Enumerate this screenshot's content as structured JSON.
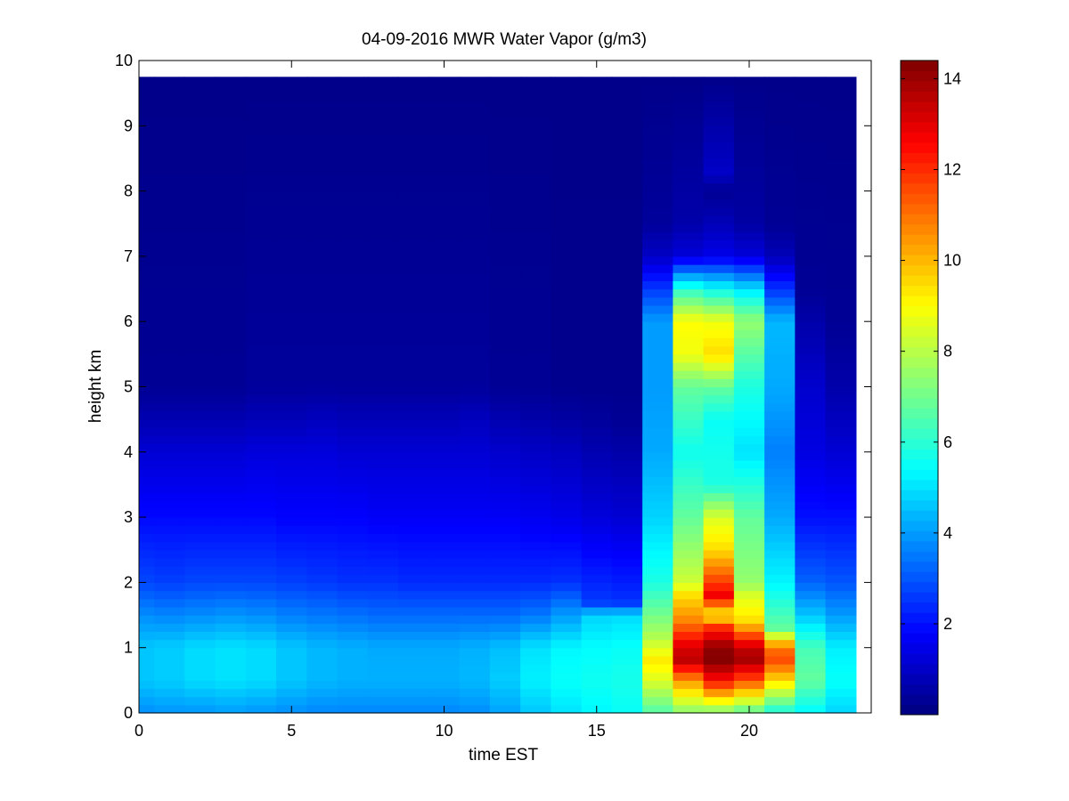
{
  "chart_data": {
    "type": "heatmap",
    "title": "04-09-2016 MWR Water Vapor (g/m3)",
    "xlabel": "time EST",
    "ylabel": "height km",
    "xlim": [
      0,
      24
    ],
    "ylim": [
      0,
      10
    ],
    "x_ticks": [
      0,
      5,
      10,
      15,
      20
    ],
    "y_ticks": [
      0,
      1,
      2,
      3,
      4,
      5,
      6,
      7,
      8,
      9,
      10
    ],
    "colorbar": {
      "colormap": "jet",
      "range": [
        0,
        14.4
      ],
      "ticks": [
        2,
        4,
        6,
        8,
        10,
        12,
        14
      ]
    },
    "data_extent": {
      "time_range": [
        0,
        23.5
      ],
      "height_range": [
        0,
        9.75
      ]
    },
    "columns": [
      {
        "time_start": 0.0,
        "time_end": 0.5,
        "profile": [
          [
            0,
            3.8
          ],
          [
            0.5,
            4.6
          ],
          [
            1.0,
            4.6
          ],
          [
            1.5,
            3.8
          ],
          [
            2.0,
            2.8
          ],
          [
            3.0,
            1.9
          ],
          [
            4.0,
            1.2
          ],
          [
            4.5,
            0.7
          ],
          [
            5.0,
            0.3
          ],
          [
            9.75,
            0.15
          ]
        ]
      },
      {
        "time_start": 0.5,
        "time_end": 1.5,
        "profile": [
          [
            0,
            3.9
          ],
          [
            0.5,
            4.7
          ],
          [
            1.0,
            4.7
          ],
          [
            1.5,
            3.7
          ],
          [
            2.0,
            2.7
          ],
          [
            3.0,
            1.9
          ],
          [
            4.0,
            1.2
          ],
          [
            4.5,
            0.7
          ],
          [
            5.0,
            0.3
          ],
          [
            9.75,
            0.15
          ]
        ]
      },
      {
        "time_start": 1.5,
        "time_end": 2.5,
        "profile": [
          [
            0,
            3.9
          ],
          [
            0.5,
            4.9
          ],
          [
            1.0,
            4.9
          ],
          [
            1.5,
            3.8
          ],
          [
            2.0,
            2.8
          ],
          [
            3.0,
            1.9
          ],
          [
            4.0,
            1.2
          ],
          [
            4.5,
            0.7
          ],
          [
            5.0,
            0.3
          ],
          [
            9.75,
            0.15
          ]
        ]
      },
      {
        "time_start": 2.5,
        "time_end": 3.5,
        "profile": [
          [
            0,
            4.0
          ],
          [
            0.5,
            5.0
          ],
          [
            1.0,
            5.0
          ],
          [
            1.5,
            3.9
          ],
          [
            2.0,
            2.8
          ],
          [
            3.0,
            1.9
          ],
          [
            4.0,
            1.2
          ],
          [
            4.5,
            0.7
          ],
          [
            5.0,
            0.3
          ],
          [
            9.75,
            0.15
          ]
        ]
      },
      {
        "time_start": 3.5,
        "time_end": 4.5,
        "profile": [
          [
            0,
            3.9
          ],
          [
            0.5,
            4.9
          ],
          [
            1.0,
            4.9
          ],
          [
            1.5,
            3.8
          ],
          [
            2.0,
            2.8
          ],
          [
            3.0,
            1.9
          ],
          [
            4.0,
            1.3
          ],
          [
            4.5,
            0.8
          ],
          [
            5.0,
            0.4
          ],
          [
            9.75,
            0.15
          ]
        ]
      },
      {
        "time_start": 4.5,
        "time_end": 5.5,
        "profile": [
          [
            0,
            3.8
          ],
          [
            0.5,
            4.6
          ],
          [
            1.0,
            4.6
          ],
          [
            1.5,
            3.6
          ],
          [
            2.0,
            2.7
          ],
          [
            3.0,
            1.8
          ],
          [
            4.0,
            1.3
          ],
          [
            4.5,
            0.8
          ],
          [
            5.0,
            0.4
          ],
          [
            9.75,
            0.15
          ]
        ]
      },
      {
        "time_start": 5.5,
        "time_end": 6.5,
        "profile": [
          [
            0,
            3.7
          ],
          [
            0.5,
            4.4
          ],
          [
            1.0,
            4.4
          ],
          [
            1.5,
            3.5
          ],
          [
            2.0,
            2.6
          ],
          [
            3.0,
            1.8
          ],
          [
            4.0,
            1.3
          ],
          [
            4.5,
            0.9
          ],
          [
            5.0,
            0.4
          ],
          [
            9.75,
            0.15
          ]
        ]
      },
      {
        "time_start": 6.5,
        "time_end": 7.5,
        "profile": [
          [
            0,
            3.7
          ],
          [
            0.5,
            4.3
          ],
          [
            1.0,
            4.3
          ],
          [
            1.5,
            3.4
          ],
          [
            2.0,
            2.5
          ],
          [
            3.0,
            1.8
          ],
          [
            4.0,
            1.2
          ],
          [
            4.5,
            0.8
          ],
          [
            5.0,
            0.4
          ],
          [
            9.75,
            0.15
          ]
        ]
      },
      {
        "time_start": 7.5,
        "time_end": 8.5,
        "profile": [
          [
            0,
            3.7
          ],
          [
            0.5,
            4.3
          ],
          [
            1.0,
            4.2
          ],
          [
            1.5,
            3.3
          ],
          [
            2.0,
            2.5
          ],
          [
            3.0,
            1.7
          ],
          [
            4.0,
            1.2
          ],
          [
            4.5,
            0.8
          ],
          [
            5.0,
            0.4
          ],
          [
            9.75,
            0.15
          ]
        ]
      },
      {
        "time_start": 8.5,
        "time_end": 9.5,
        "profile": [
          [
            0,
            3.7
          ],
          [
            0.5,
            4.3
          ],
          [
            1.0,
            4.2
          ],
          [
            1.5,
            3.3
          ],
          [
            2.0,
            2.4
          ],
          [
            3.0,
            1.7
          ],
          [
            4.0,
            1.2
          ],
          [
            4.5,
            0.8
          ],
          [
            5.0,
            0.4
          ],
          [
            9.75,
            0.15
          ]
        ]
      },
      {
        "time_start": 9.5,
        "time_end": 10.5,
        "profile": [
          [
            0,
            3.7
          ],
          [
            0.5,
            4.3
          ],
          [
            1.0,
            4.2
          ],
          [
            1.5,
            3.3
          ],
          [
            2.0,
            2.4
          ],
          [
            3.0,
            1.7
          ],
          [
            4.0,
            1.2
          ],
          [
            4.5,
            0.8
          ],
          [
            5.0,
            0.4
          ],
          [
            9.75,
            0.15
          ]
        ]
      },
      {
        "time_start": 10.5,
        "time_end": 11.5,
        "profile": [
          [
            0,
            3.8
          ],
          [
            0.5,
            4.4
          ],
          [
            1.0,
            4.3
          ],
          [
            1.5,
            3.3
          ],
          [
            2.0,
            2.4
          ],
          [
            3.0,
            1.7
          ],
          [
            4.0,
            1.2
          ],
          [
            4.5,
            0.9
          ],
          [
            5.0,
            0.4
          ],
          [
            9.75,
            0.15
          ]
        ]
      },
      {
        "time_start": 11.5,
        "time_end": 12.5,
        "profile": [
          [
            0,
            4.1
          ],
          [
            0.5,
            4.7
          ],
          [
            1.0,
            4.5
          ],
          [
            1.5,
            3.3
          ],
          [
            2.0,
            2.4
          ],
          [
            3.0,
            1.7
          ],
          [
            4.0,
            1.1
          ],
          [
            4.5,
            0.7
          ],
          [
            5.0,
            0.3
          ],
          [
            9.75,
            0.15
          ]
        ]
      },
      {
        "time_start": 12.5,
        "time_end": 13.5,
        "profile": [
          [
            0,
            4.6
          ],
          [
            0.5,
            5.2
          ],
          [
            1.0,
            5.0
          ],
          [
            1.5,
            3.5
          ],
          [
            2.0,
            2.4
          ],
          [
            3.0,
            1.6
          ],
          [
            4.0,
            1.0
          ],
          [
            4.5,
            0.6
          ],
          [
            5.0,
            0.3
          ],
          [
            9.75,
            0.15
          ]
        ]
      },
      {
        "time_start": 13.5,
        "time_end": 14.5,
        "profile": [
          [
            0,
            5.0
          ],
          [
            0.5,
            5.5
          ],
          [
            1.0,
            5.3
          ],
          [
            1.5,
            4.0
          ],
          [
            2.0,
            2.5
          ],
          [
            3.0,
            1.5
          ],
          [
            4.0,
            0.9
          ],
          [
            4.5,
            0.5
          ],
          [
            5.0,
            0.2
          ],
          [
            9.75,
            0.15
          ]
        ]
      },
      {
        "time_start": 14.5,
        "time_end": 15.5,
        "profile": [
          [
            0,
            5.3
          ],
          [
            0.5,
            5.6
          ],
          [
            1.0,
            5.4
          ],
          [
            1.5,
            4.8
          ],
          [
            1.7,
            2.6
          ],
          [
            3.0,
            1.3
          ],
          [
            4.0,
            0.7
          ],
          [
            4.5,
            0.4
          ],
          [
            5.0,
            0.2
          ],
          [
            9.75,
            0.15
          ]
        ]
      },
      {
        "time_start": 15.5,
        "time_end": 16.5,
        "profile": [
          [
            0,
            5.5
          ],
          [
            0.5,
            5.7
          ],
          [
            1.0,
            5.5
          ],
          [
            1.5,
            4.9
          ],
          [
            1.7,
            2.5
          ],
          [
            3.0,
            1.2
          ],
          [
            4.0,
            0.6
          ],
          [
            4.5,
            0.3
          ],
          [
            5.0,
            0.2
          ],
          [
            9.75,
            0.15
          ]
        ]
      },
      {
        "time_start": 16.5,
        "time_end": 17.5,
        "profile": [
          [
            0,
            6.5
          ],
          [
            0.5,
            8.5
          ],
          [
            0.8,
            9.3
          ],
          [
            1.2,
            7.8
          ],
          [
            2.0,
            5.8
          ],
          [
            3.0,
            4.8
          ],
          [
            4.0,
            4.2
          ],
          [
            5.0,
            4.0
          ],
          [
            6.0,
            4.0
          ],
          [
            6.5,
            2.6
          ],
          [
            7.0,
            1.0
          ],
          [
            7.5,
            0.4
          ],
          [
            9.75,
            0.15
          ]
        ]
      },
      {
        "time_start": 17.5,
        "time_end": 18.5,
        "profile": [
          [
            0,
            7.2
          ],
          [
            0.5,
            10.5
          ],
          [
            0.8,
            13.5
          ],
          [
            1.0,
            13.2
          ],
          [
            1.4,
            10.8
          ],
          [
            1.8,
            9.5
          ],
          [
            2.0,
            8.3
          ],
          [
            3.0,
            6.8
          ],
          [
            4.0,
            5.6
          ],
          [
            5.0,
            6.8
          ],
          [
            5.5,
            8.8
          ],
          [
            6.0,
            9.0
          ],
          [
            6.5,
            6.0
          ],
          [
            7.0,
            1.3
          ],
          [
            7.5,
            0.6
          ],
          [
            9.75,
            0.15
          ]
        ]
      },
      {
        "time_start": 18.5,
        "time_end": 19.5,
        "profile": [
          [
            0,
            7.0
          ],
          [
            0.5,
            12.5
          ],
          [
            0.8,
            14.3
          ],
          [
            1.0,
            14.2
          ],
          [
            1.3,
            12.2
          ],
          [
            1.5,
            9.0
          ],
          [
            1.8,
            12.8
          ],
          [
            2.0,
            11.8
          ],
          [
            2.5,
            9.5
          ],
          [
            3.0,
            8.5
          ],
          [
            3.5,
            5.8
          ],
          [
            4.5,
            5.5
          ],
          [
            5.0,
            6.8
          ],
          [
            5.5,
            9.5
          ],
          [
            6.0,
            8.8
          ],
          [
            6.5,
            5.5
          ],
          [
            7.0,
            1.5
          ],
          [
            7.5,
            0.8
          ],
          [
            8.0,
            0.3
          ],
          [
            8.3,
            1.0
          ],
          [
            9.75,
            0.15
          ]
        ]
      },
      {
        "time_start": 19.5,
        "time_end": 20.5,
        "profile": [
          [
            0,
            6.5
          ],
          [
            0.5,
            11.5
          ],
          [
            0.8,
            13.8
          ],
          [
            1.0,
            13.5
          ],
          [
            1.4,
            9.5
          ],
          [
            1.8,
            8.5
          ],
          [
            2.0,
            7.5
          ],
          [
            3.0,
            6.8
          ],
          [
            4.0,
            5.0
          ],
          [
            5.0,
            5.8
          ],
          [
            6.0,
            7.5
          ],
          [
            6.5,
            5.0
          ],
          [
            7.0,
            1.3
          ],
          [
            7.5,
            0.5
          ],
          [
            9.75,
            0.15
          ]
        ]
      },
      {
        "time_start": 20.5,
        "time_end": 21.5,
        "profile": [
          [
            0,
            5.6
          ],
          [
            0.5,
            9.5
          ],
          [
            0.8,
            11.5
          ],
          [
            1.0,
            11.0
          ],
          [
            1.3,
            6.8
          ],
          [
            2.0,
            5.3
          ],
          [
            3.0,
            4.2
          ],
          [
            4.0,
            3.6
          ],
          [
            5.0,
            4.2
          ],
          [
            6.0,
            4.4
          ],
          [
            6.5,
            2.5
          ],
          [
            7.0,
            0.8
          ],
          [
            7.5,
            0.3
          ],
          [
            9.75,
            0.15
          ]
        ]
      },
      {
        "time_start": 21.5,
        "time_end": 22.5,
        "profile": [
          [
            0,
            5.3
          ],
          [
            0.5,
            6.8
          ],
          [
            1.0,
            6.4
          ],
          [
            1.5,
            4.6
          ],
          [
            2.0,
            3.2
          ],
          [
            3.0,
            2.0
          ],
          [
            4.0,
            1.4
          ],
          [
            5.0,
            1.1
          ],
          [
            6.0,
            0.6
          ],
          [
            6.5,
            0.3
          ],
          [
            9.75,
            0.15
          ]
        ]
      },
      {
        "time_start": 22.5,
        "time_end": 23.5,
        "profile": [
          [
            0,
            4.8
          ],
          [
            0.5,
            5.5
          ],
          [
            1.0,
            5.2
          ],
          [
            1.5,
            4.0
          ],
          [
            2.0,
            3.0
          ],
          [
            3.0,
            2.0
          ],
          [
            4.0,
            1.2
          ],
          [
            5.0,
            0.6
          ],
          [
            6.0,
            0.3
          ],
          [
            9.75,
            0.15
          ]
        ]
      }
    ]
  }
}
